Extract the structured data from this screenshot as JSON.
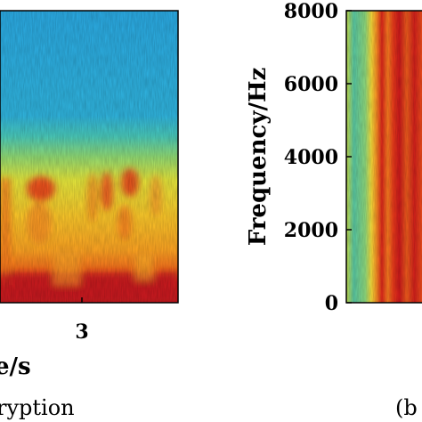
{
  "chart_data": [
    {
      "type": "heatmap",
      "panel": "left",
      "colormap": "jet",
      "xlabel_visible_fragment": "e/s",
      "x_tick_labels": [
        "3"
      ],
      "caption_fragment": "ryption",
      "grid": false
    },
    {
      "type": "heatmap",
      "panel": "right",
      "colormap": "jet",
      "ylabel": "Frequency/Hz",
      "ylim": [
        0,
        8000
      ],
      "y_ticks": [
        0,
        2000,
        4000,
        6000,
        8000
      ],
      "y_tick_labels": [
        "0",
        "2000",
        "4000",
        "6000",
        "8000"
      ],
      "caption_fragment": "(b",
      "grid": false
    }
  ]
}
